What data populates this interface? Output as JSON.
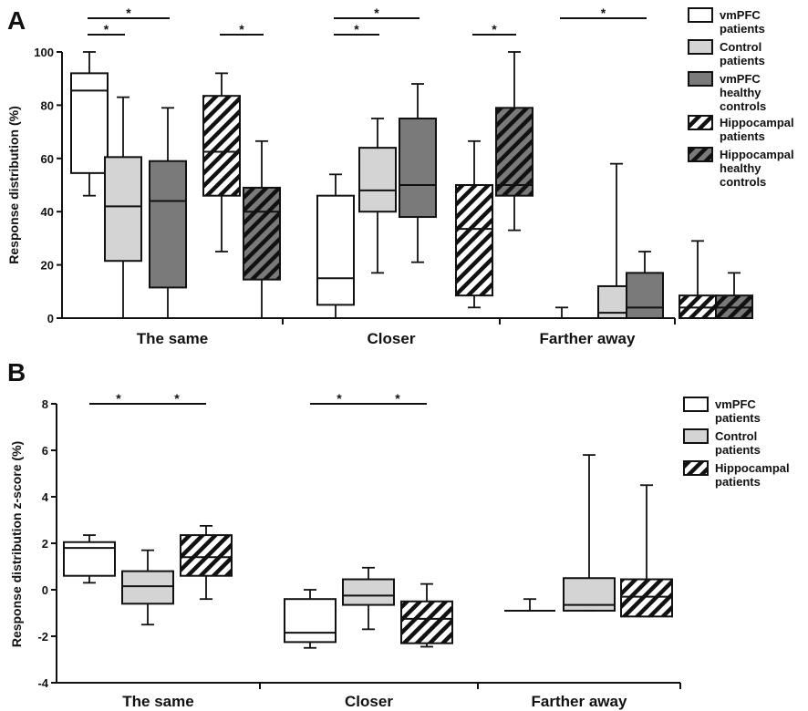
{
  "colors": {
    "white": "#ffffff",
    "light_gray": "#d4d4d4",
    "dark_gray": "#7a7a7a",
    "stroke": "#111111",
    "hatch": "#111111"
  },
  "chart_data": [
    {
      "panel": "A",
      "type": "box",
      "ylabel": "Response distribution (%)",
      "ylim": [
        0,
        100
      ],
      "yticks": [
        0,
        20,
        40,
        60,
        80,
        100
      ],
      "categories": [
        "The same",
        "Closer",
        "Farther away"
      ],
      "legend": {
        "placement": "right",
        "entries": [
          {
            "lines": [
              "vmPFC",
              "patients"
            ],
            "fill": "white",
            "hatch": false
          },
          {
            "lines": [
              "Control",
              "patients"
            ],
            "fill": "light_gray",
            "hatch": false
          },
          {
            "lines": [
              "vmPFC",
              "healthy",
              "controls"
            ],
            "fill": "dark_gray",
            "hatch": false
          },
          {
            "lines": [
              "Hippocampal",
              "patients"
            ],
            "fill": "white",
            "hatch": true
          },
          {
            "lines": [
              "Hippocampal",
              "healthy",
              "controls"
            ],
            "fill": "dark_gray",
            "hatch": true
          }
        ]
      },
      "groups": [
        {
          "category": "The same",
          "boxes": [
            {
              "series": 0,
              "min": 46,
              "q1": 54.5,
              "median": 85.5,
              "q3": 92,
              "max": 100
            },
            {
              "series": 1,
              "min": 0,
              "q1": 21.5,
              "median": 42,
              "q3": 60.5,
              "max": 83
            },
            {
              "series": 2,
              "min": 0,
              "q1": 11.5,
              "median": 44,
              "q3": 59,
              "max": 79
            },
            {
              "series": 3,
              "min": 25,
              "q1": 46,
              "median": 62.5,
              "q3": 83.5,
              "max": 92
            },
            {
              "series": 4,
              "min": 0,
              "q1": 14.5,
              "median": 40,
              "q3": 49,
              "max": 66.5
            }
          ]
        },
        {
          "category": "Closer",
          "boxes": [
            {
              "series": 0,
              "min": 0,
              "q1": 5,
              "median": 15,
              "q3": 46,
              "max": 54
            },
            {
              "series": 1,
              "min": 17,
              "q1": 40,
              "median": 48,
              "q3": 64,
              "max": 75
            },
            {
              "series": 2,
              "min": 21,
              "q1": 38,
              "median": 50,
              "q3": 75,
              "max": 88
            },
            {
              "series": 3,
              "min": 4,
              "q1": 8.5,
              "median": 33.5,
              "q3": 50,
              "max": 66.5
            },
            {
              "series": 4,
              "min": 33,
              "q1": 46,
              "median": 50,
              "q3": 79,
              "max": 100
            }
          ]
        },
        {
          "category": "Farther away",
          "boxes": [
            {
              "series": 0,
              "min": 0,
              "q1": 0,
              "median": 0,
              "q3": 0,
              "max": 4
            },
            {
              "series": 1,
              "min": 0,
              "q1": 0,
              "median": 2,
              "q3": 12,
              "max": 58
            },
            {
              "series": 2,
              "min": 0,
              "q1": 0,
              "median": 4,
              "q3": 17,
              "max": 25
            },
            {
              "series": 3,
              "min": 0,
              "q1": 0,
              "median": 4,
              "q3": 8.5,
              "max": 29
            },
            {
              "series": 4,
              "min": 0,
              "q1": 0,
              "median": 4,
              "q3": 8.5,
              "max": 17
            }
          ]
        }
      ],
      "significance": [
        {
          "group": 0,
          "from": 0,
          "to": 2,
          "level": 1,
          "label": "*"
        },
        {
          "group": 0,
          "from": 0,
          "to": 1,
          "level": 0,
          "label": "*"
        },
        {
          "group": 0,
          "from": 3,
          "to": 4,
          "level": 0,
          "label": "*"
        },
        {
          "group": 1,
          "from": 0,
          "to": 2,
          "level": 1,
          "label": "*"
        },
        {
          "group": 1,
          "from": 0,
          "to": 1,
          "level": 0,
          "label": "*"
        },
        {
          "group": 1,
          "from": 3,
          "to": 4,
          "level": 0,
          "label": "*"
        },
        {
          "group": 2,
          "from": 0,
          "to": 2,
          "level": 1,
          "label": "*"
        }
      ]
    },
    {
      "panel": "B",
      "type": "box",
      "ylabel": "Response distribution z-score (%)",
      "ylim": [
        -4,
        8
      ],
      "yticks": [
        -4,
        -2,
        0,
        2,
        4,
        6,
        8
      ],
      "categories": [
        "The same",
        "Closer",
        "Farther away"
      ],
      "legend": {
        "placement": "right",
        "entries": [
          {
            "lines": [
              "vmPFC",
              "patients"
            ],
            "fill": "white",
            "hatch": false
          },
          {
            "lines": [
              "Control",
              "patients"
            ],
            "fill": "light_gray",
            "hatch": false
          },
          {
            "lines": [
              "Hippocampal",
              "patients"
            ],
            "fill": "white",
            "hatch": true
          }
        ]
      },
      "groups": [
        {
          "category": "The same",
          "boxes": [
            {
              "series": 0,
              "min": 0.3,
              "q1": 0.6,
              "median": 1.8,
              "q3": 2.05,
              "max": 2.35
            },
            {
              "series": 1,
              "min": -1.5,
              "q1": -0.6,
              "median": 0.15,
              "q3": 0.8,
              "max": 1.7
            },
            {
              "series": 2,
              "min": -0.4,
              "q1": 0.6,
              "median": 1.4,
              "q3": 2.35,
              "max": 2.75
            }
          ]
        },
        {
          "category": "Closer",
          "boxes": [
            {
              "series": 0,
              "min": -2.5,
              "q1": -2.25,
              "median": -1.85,
              "q3": -0.4,
              "max": 0
            },
            {
              "series": 1,
              "min": -1.7,
              "q1": -0.65,
              "median": -0.25,
              "q3": 0.45,
              "max": 0.95
            },
            {
              "series": 2,
              "min": -2.45,
              "q1": -2.3,
              "median": -1.25,
              "q3": -0.5,
              "max": 0.25
            }
          ]
        },
        {
          "category": "Farther away",
          "boxes": [
            {
              "series": 0,
              "min": -0.9,
              "q1": -0.9,
              "median": -0.9,
              "q3": -0.9,
              "max": -0.4
            },
            {
              "series": 1,
              "min": -0.9,
              "q1": -0.9,
              "median": -0.65,
              "q3": 0.5,
              "max": 5.8
            },
            {
              "series": 2,
              "min": -1.15,
              "q1": -1.15,
              "median": -0.3,
              "q3": 0.45,
              "max": 4.5
            }
          ]
        }
      ],
      "significance": [
        {
          "group": 0,
          "from": 0,
          "to": 1,
          "level": 0,
          "label": "*"
        },
        {
          "group": 0,
          "from": 1,
          "to": 2,
          "level": 0,
          "label": "*"
        },
        {
          "group": 1,
          "from": 0,
          "to": 1,
          "level": 0,
          "label": "*"
        },
        {
          "group": 1,
          "from": 1,
          "to": 2,
          "level": 0,
          "label": "*"
        }
      ]
    }
  ]
}
